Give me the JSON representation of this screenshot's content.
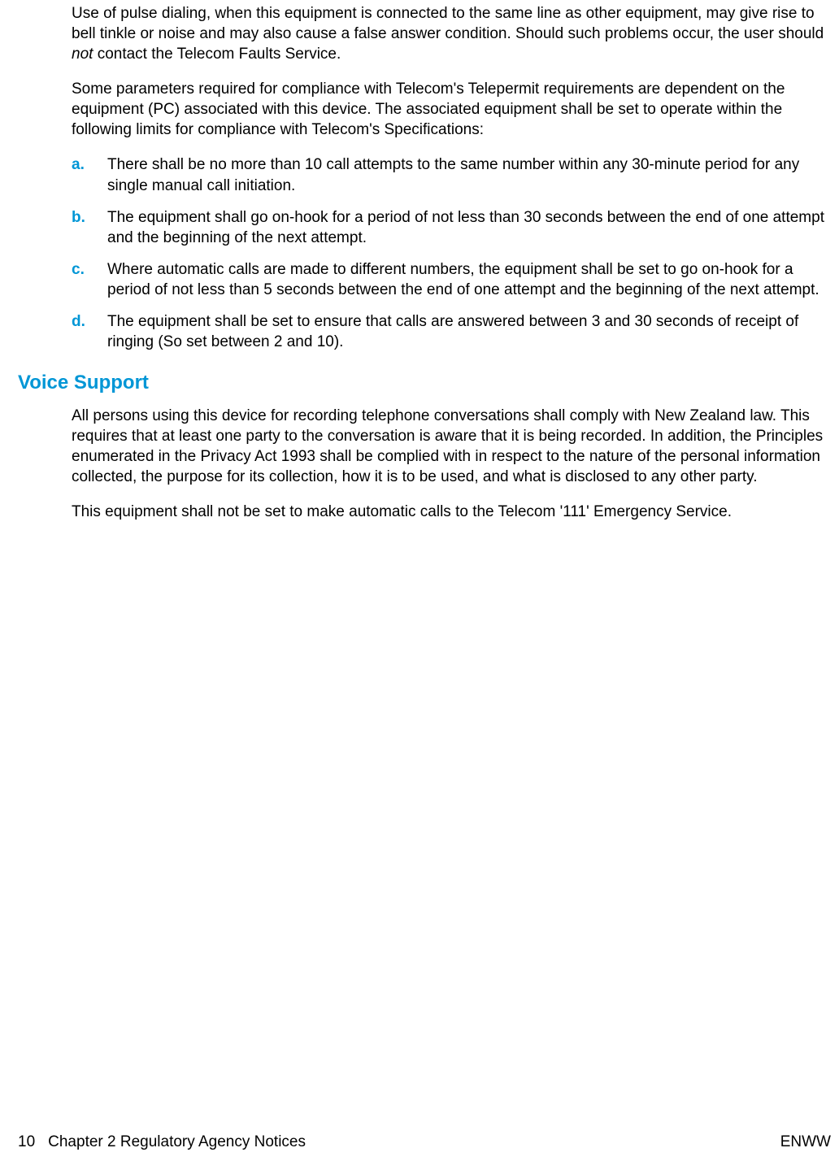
{
  "colors": {
    "accent": "#0096d6",
    "text": "#000000",
    "background": "#ffffff"
  },
  "typography": {
    "body_fontsize": 19,
    "heading_fontsize": 24,
    "footer_fontsize": 19,
    "line_height": 1.32,
    "font_family": "Arial, Helvetica, sans-serif"
  },
  "para1_pre": "Use of pulse dialing, when this equipment is connected to the same line as other equipment, may give rise to bell tinkle or noise and may also cause a false answer condition. Should such problems occur, the user should ",
  "para1_em": "not",
  "para1_post": " contact the Telecom Faults Service.",
  "para2": "Some parameters required for compliance with Telecom's Telepermit requirements are dependent on the equipment (PC) associated with this device. The associated equipment shall be set to operate within the following limits for compliance with Telecom's Specifications:",
  "list": [
    {
      "marker": "a.",
      "text": "There shall be no more than 10 call attempts to the same number within any 30-minute period for any single manual call initiation."
    },
    {
      "marker": "b.",
      "text": "The equipment shall go on-hook for a period of not less than 30 seconds between the end of one attempt and the beginning of the next attempt."
    },
    {
      "marker": "c.",
      "text": "Where automatic calls are made to different numbers, the equipment shall be set to go on-hook for a period of not less than 5 seconds between the end of one attempt and the beginning of the next attempt."
    },
    {
      "marker": "d.",
      "text": "The equipment shall be set to ensure that calls are answered between 3 and 30 seconds of receipt of ringing (So set between 2 and 10)."
    }
  ],
  "heading": "Voice Support",
  "para3": "All persons using this device for recording telephone conversations shall comply with New Zealand law. This requires that at least one party to the conversation is aware that it is being recorded. In addition, the Principles enumerated in the Privacy Act 1993 shall be complied with in respect to the nature of the personal information collected, the purpose for its collection, how it is to be used, and what is disclosed to any other party.",
  "para4": "This equipment shall not be set to make automatic calls to the Telecom '111' Emergency Service.",
  "footer": {
    "page_number": "10",
    "chapter": "Chapter 2   Regulatory Agency Notices",
    "right": "ENWW"
  }
}
